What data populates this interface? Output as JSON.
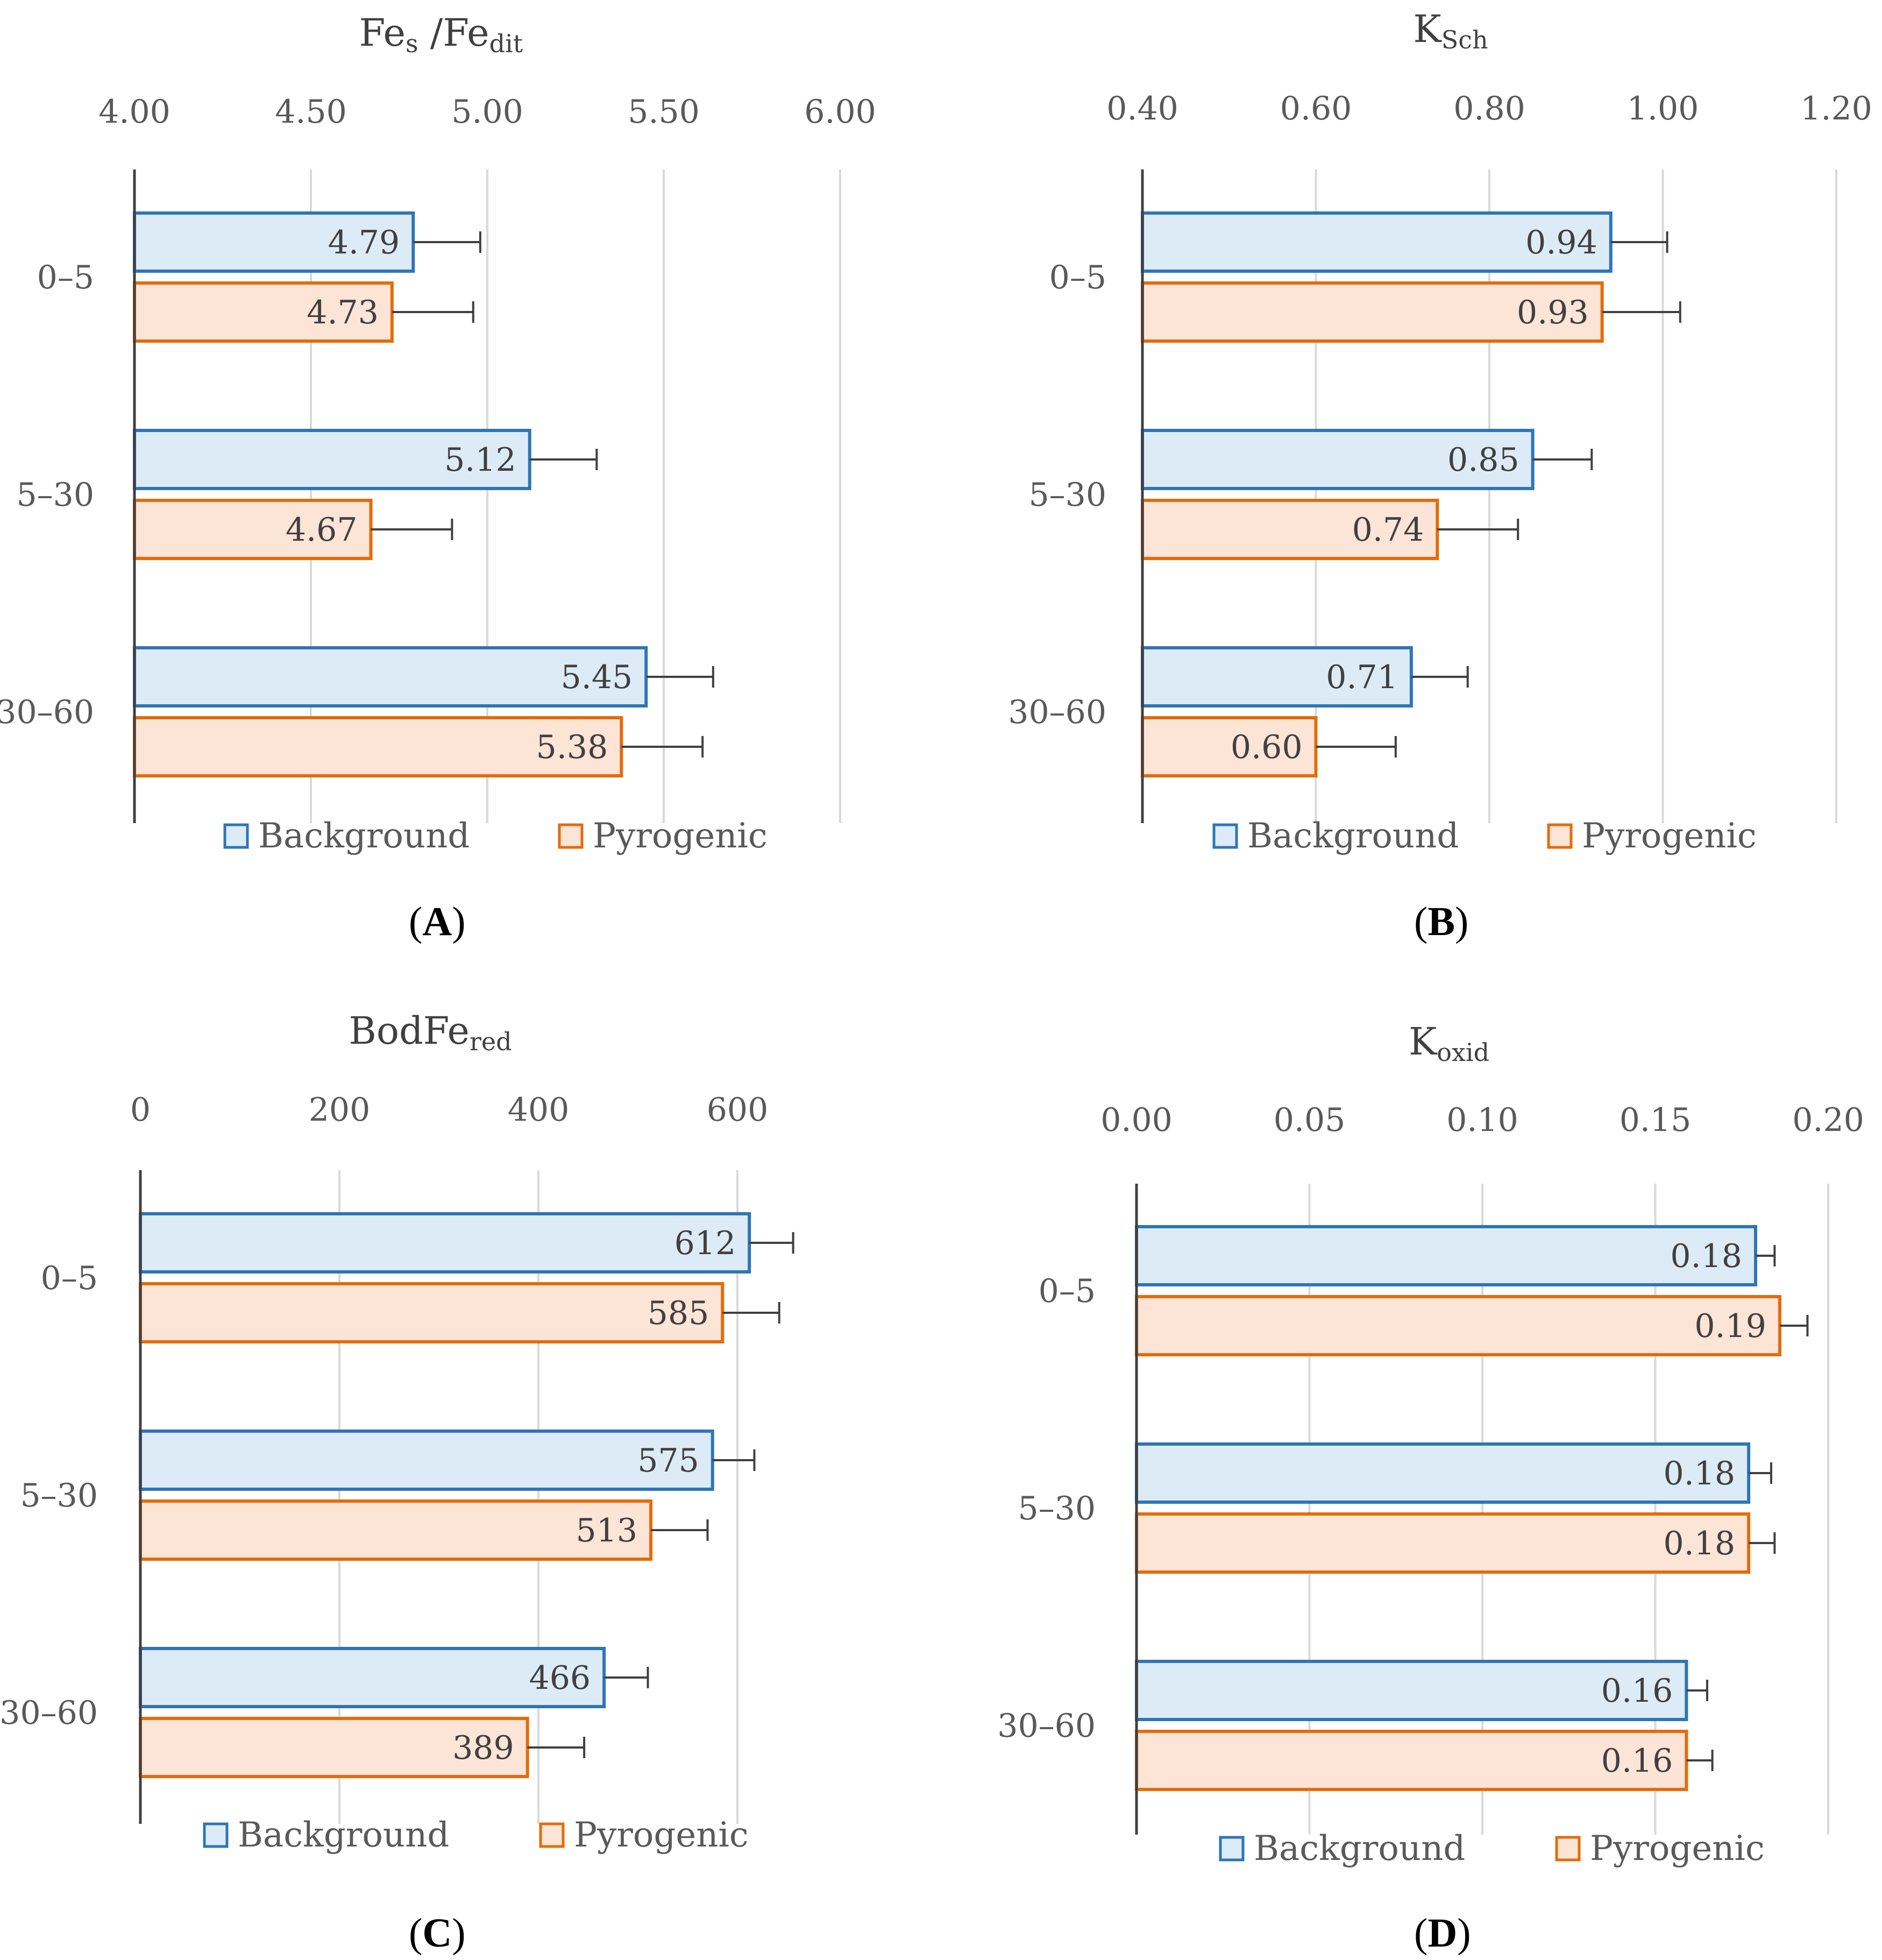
{
  "legend": {
    "series1": "Background",
    "series2": "Pyrogenic"
  },
  "colors": {
    "background_fill": "#ddebf7",
    "background_stroke": "#2e75b6",
    "pyrogenic_fill": "#fce4d6",
    "pyrogenic_stroke": "#e46c0a"
  },
  "chart_data": [
    {
      "id": "A",
      "type": "bar",
      "orientation": "horizontal",
      "panel_label": "A",
      "title_main": "Fe",
      "title_sub1": "s",
      "title_mid": " /Fe",
      "title_sub2": "dit",
      "categories": [
        "0–5",
        "5–30",
        "30–60"
      ],
      "xlim": [
        4.0,
        6.0
      ],
      "ticks": [
        4.0,
        4.5,
        5.0,
        5.5,
        6.0
      ],
      "tick_labels": [
        "4.00",
        "4.50",
        "5.00",
        "5.50",
        "6.00"
      ],
      "series": [
        {
          "name": "Background",
          "values": [
            4.79,
            5.12,
            5.45
          ],
          "labels": [
            "4.79",
            "5.12",
            "5.45"
          ],
          "errors": [
            0.19,
            0.19,
            0.19
          ]
        },
        {
          "name": "Pyrogenic",
          "values": [
            4.73,
            4.67,
            5.38
          ],
          "labels": [
            "4.73",
            "4.67",
            "5.38"
          ],
          "errors": [
            0.23,
            0.23,
            0.23
          ]
        }
      ]
    },
    {
      "id": "B",
      "type": "bar",
      "orientation": "horizontal",
      "panel_label": "B",
      "title_main": "K",
      "title_sub1": "Sch",
      "title_mid": "",
      "title_sub2": "",
      "categories": [
        "0–5",
        "5–30",
        "30–60"
      ],
      "xlim": [
        0.4,
        1.2
      ],
      "ticks": [
        0.4,
        0.6,
        0.8,
        1.0,
        1.2
      ],
      "tick_labels": [
        "0.40",
        "0.60",
        "0.80",
        "1.00",
        "1.20"
      ],
      "series": [
        {
          "name": "Background",
          "values": [
            0.94,
            0.85,
            0.71
          ],
          "labels": [
            "0.94",
            "0.85",
            "0.71"
          ],
          "errors": [
            0.065,
            0.068,
            0.065
          ]
        },
        {
          "name": "Pyrogenic",
          "values": [
            0.93,
            0.74,
            0.6
          ],
          "labels": [
            "0.93",
            "0.74",
            "0.60"
          ],
          "errors": [
            0.09,
            0.093,
            0.092
          ]
        }
      ]
    },
    {
      "id": "C",
      "type": "bar",
      "orientation": "horizontal",
      "panel_label": "C",
      "title_main": "BodFe",
      "title_sub1": "red",
      "title_mid": "",
      "title_sub2": "",
      "categories": [
        "0–5",
        "5–30",
        "30–60"
      ],
      "xlim": [
        0,
        600
      ],
      "ticks": [
        0,
        200,
        400,
        600
      ],
      "tick_labels": [
        "0",
        "200",
        "400",
        "600"
      ],
      "series": [
        {
          "name": "Background",
          "values": [
            612,
            575,
            466
          ],
          "labels": [
            "612",
            "575",
            "466"
          ],
          "errors": [
            44,
            42,
            44
          ]
        },
        {
          "name": "Pyrogenic",
          "values": [
            585,
            513,
            389
          ],
          "labels": [
            "585",
            "513",
            "389"
          ],
          "errors": [
            57,
            57,
            57
          ]
        }
      ]
    },
    {
      "id": "D",
      "type": "bar",
      "orientation": "horizontal",
      "panel_label": "D",
      "title_main": "K",
      "title_sub1": "oxid",
      "title_mid": "",
      "title_sub2": "",
      "categories": [
        "0–5",
        "5–30",
        "30–60"
      ],
      "xlim": [
        0.0,
        0.2
      ],
      "ticks": [
        0.0,
        0.05,
        0.1,
        0.15,
        0.2
      ],
      "tick_labels": [
        "0.00",
        "0.05",
        "0.10",
        "0.15",
        "0.20"
      ],
      "series": [
        {
          "name": "Background",
          "values": [
            0.179,
            0.177,
            0.159
          ],
          "labels": [
            "0.18",
            "0.18",
            "0.16"
          ],
          "errors": [
            0.0055,
            0.0065,
            0.006
          ]
        },
        {
          "name": "Pyrogenic",
          "values": [
            0.186,
            0.177,
            0.159
          ],
          "labels": [
            "0.19",
            "0.18",
            "0.16"
          ],
          "errors": [
            0.008,
            0.0075,
            0.0075
          ]
        }
      ]
    }
  ]
}
